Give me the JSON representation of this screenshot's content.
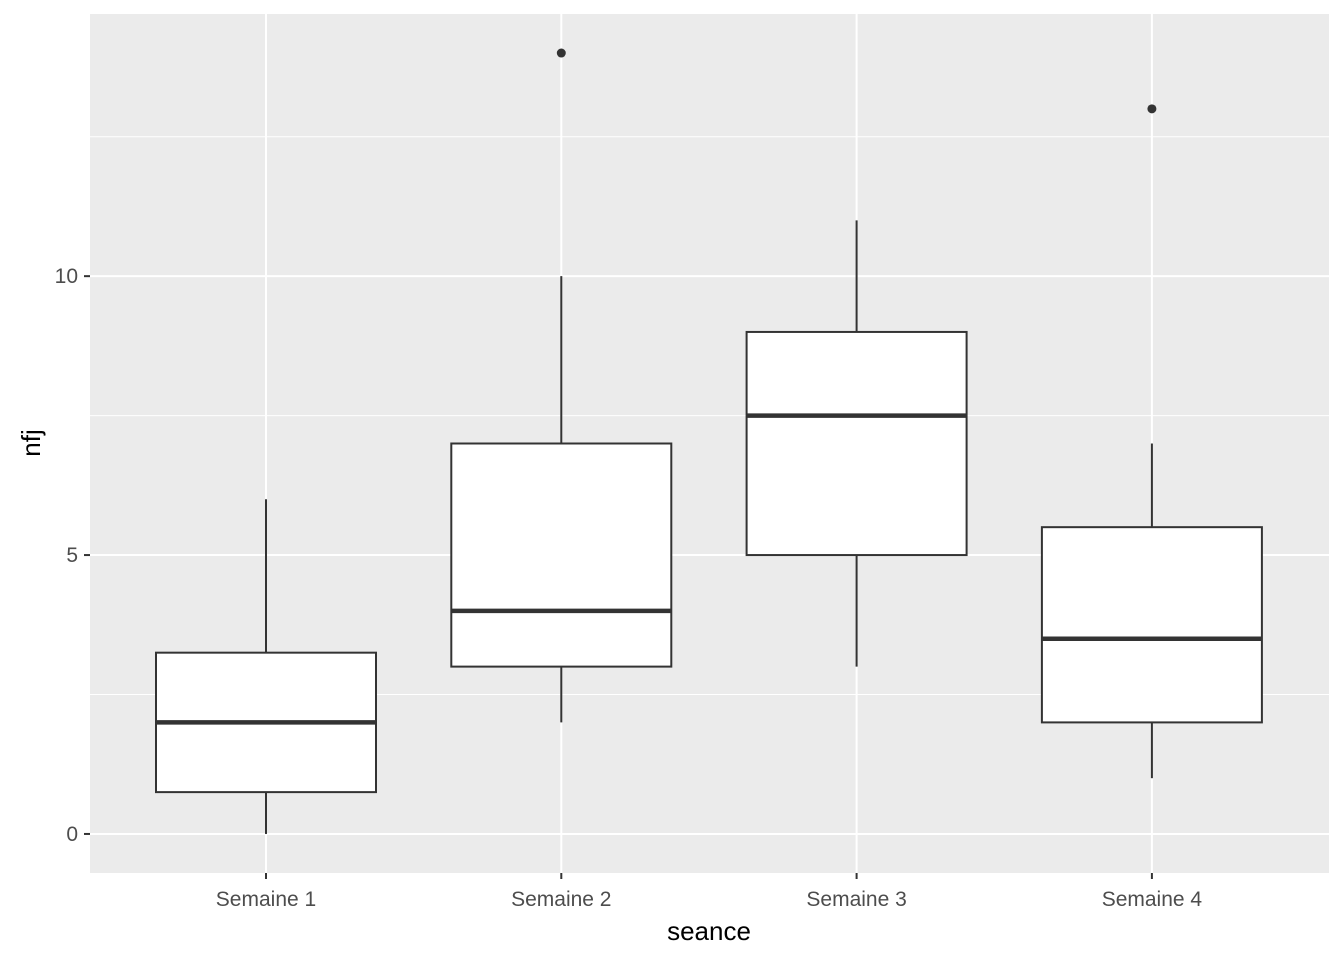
{
  "chart_data": {
    "type": "boxplot",
    "xlabel": "seance",
    "ylabel": "nfj",
    "categories": [
      "Semaine 1",
      "Semaine 2",
      "Semaine 3",
      "Semaine 4"
    ],
    "boxes": [
      {
        "category": "Semaine 1",
        "whisker_low": 0,
        "q1": 0.75,
        "median": 2,
        "q3": 3.25,
        "whisker_high": 6,
        "outliers": []
      },
      {
        "category": "Semaine 2",
        "whisker_low": 2,
        "q1": 3,
        "median": 4,
        "q3": 7,
        "whisker_high": 10,
        "outliers": [
          14
        ]
      },
      {
        "category": "Semaine 3",
        "whisker_low": 3,
        "q1": 5,
        "median": 7.5,
        "q3": 9,
        "whisker_high": 11,
        "outliers": []
      },
      {
        "category": "Semaine 4",
        "whisker_low": 1,
        "q1": 2,
        "median": 3.5,
        "q3": 5.5,
        "whisker_high": 7,
        "outliers": [
          13
        ]
      }
    ],
    "y_ticks": [
      0,
      5,
      10
    ],
    "y_tick_labels": [
      "0",
      "5",
      "10"
    ],
    "ylim": [
      -0.7,
      14.7
    ],
    "grid": true,
    "colors": {
      "panel_background": "#ebebeb",
      "grid_major": "#ffffff",
      "box_fill": "#ffffff",
      "box_stroke": "#333333",
      "tick_text": "#4d4d4d",
      "axis_title": "#000000"
    }
  }
}
